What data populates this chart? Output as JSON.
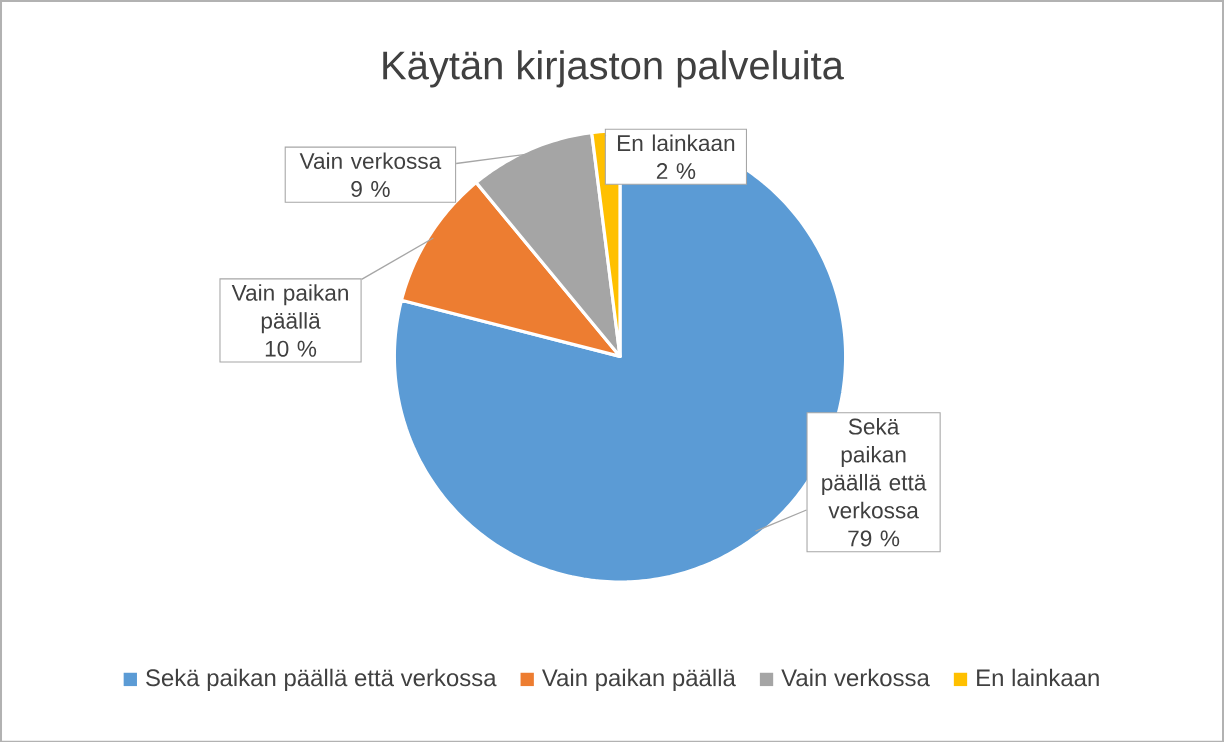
{
  "chart_data": {
    "type": "pie",
    "title": "Käytän kirjaston palveluita",
    "categories": [
      "Sekä paikan päällä että verkossa",
      "Vain paikan päällä",
      "Vain verkossa",
      "En lainkaan"
    ],
    "values": [
      79,
      10,
      9,
      2
    ],
    "colors": [
      "#5b9bd5",
      "#ed7d31",
      "#a5a5a5",
      "#ffc000"
    ],
    "value_labels": [
      "79 %",
      "10 %",
      "9 %",
      "2 %"
    ],
    "legend": "bottom"
  }
}
